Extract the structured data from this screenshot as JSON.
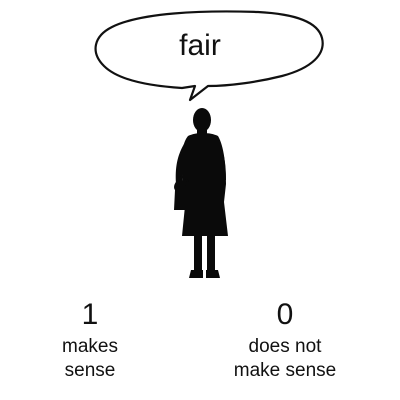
{
  "bubble": {
    "word": "fair"
  },
  "figure": {
    "icon": "woman-silhouette-icon"
  },
  "options": [
    {
      "value": "1",
      "label_line1": "makes",
      "label_line2": "sense"
    },
    {
      "value": "0",
      "label_line1": "does not",
      "label_line2": "make sense"
    }
  ],
  "colors": {
    "text": "#111111",
    "silhouette": "#0a0a0a",
    "background": "#ffffff"
  }
}
